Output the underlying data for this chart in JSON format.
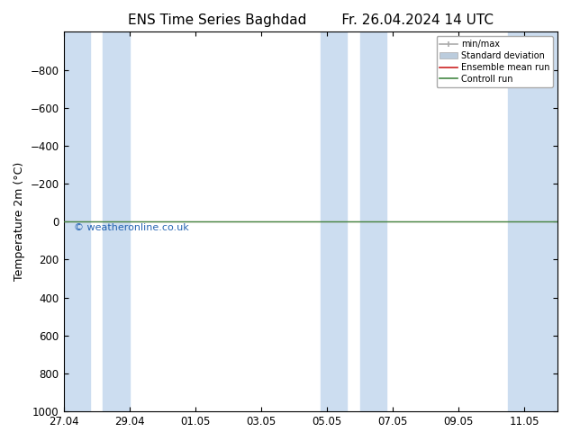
{
  "title_left": "ENS Time Series Baghdad",
  "title_right": "Fr. 26.04.2024 14 UTC",
  "ylabel": "Temperature 2m (°C)",
  "watermark": "© weatheronline.co.uk",
  "ylim_bottom": 1000,
  "ylim_top": -1000,
  "yticks": [
    -800,
    -600,
    -400,
    -200,
    0,
    200,
    400,
    600,
    800,
    1000
  ],
  "xlim_left": 0,
  "xlim_right": 15,
  "xtick_positions": [
    0,
    2,
    4,
    6,
    8,
    10,
    12,
    14
  ],
  "xtick_labels": [
    "27.04",
    "29.04",
    "01.05",
    "03.05",
    "05.05",
    "07.05",
    "09.05",
    "11.05"
  ],
  "shaded_bands": [
    [
      0.0,
      0.8
    ],
    [
      1.2,
      2.0
    ],
    [
      7.8,
      8.6
    ],
    [
      9.0,
      9.8
    ],
    [
      13.5,
      15.0
    ]
  ],
  "band_color": "#ccddf0",
  "control_run_y": 0,
  "control_run_color": "#448844",
  "ensemble_mean_color": "#cc2222",
  "background_color": "#ffffff",
  "plot_bg_color": "#ffffff",
  "legend_labels": [
    "min/max",
    "Standard deviation",
    "Ensemble mean run",
    "Controll run"
  ],
  "legend_colors": [
    "#aaaaaa",
    "#bbccdd",
    "#cc2222",
    "#448844"
  ],
  "title_fontsize": 11,
  "axis_fontsize": 9,
  "tick_fontsize": 8.5
}
